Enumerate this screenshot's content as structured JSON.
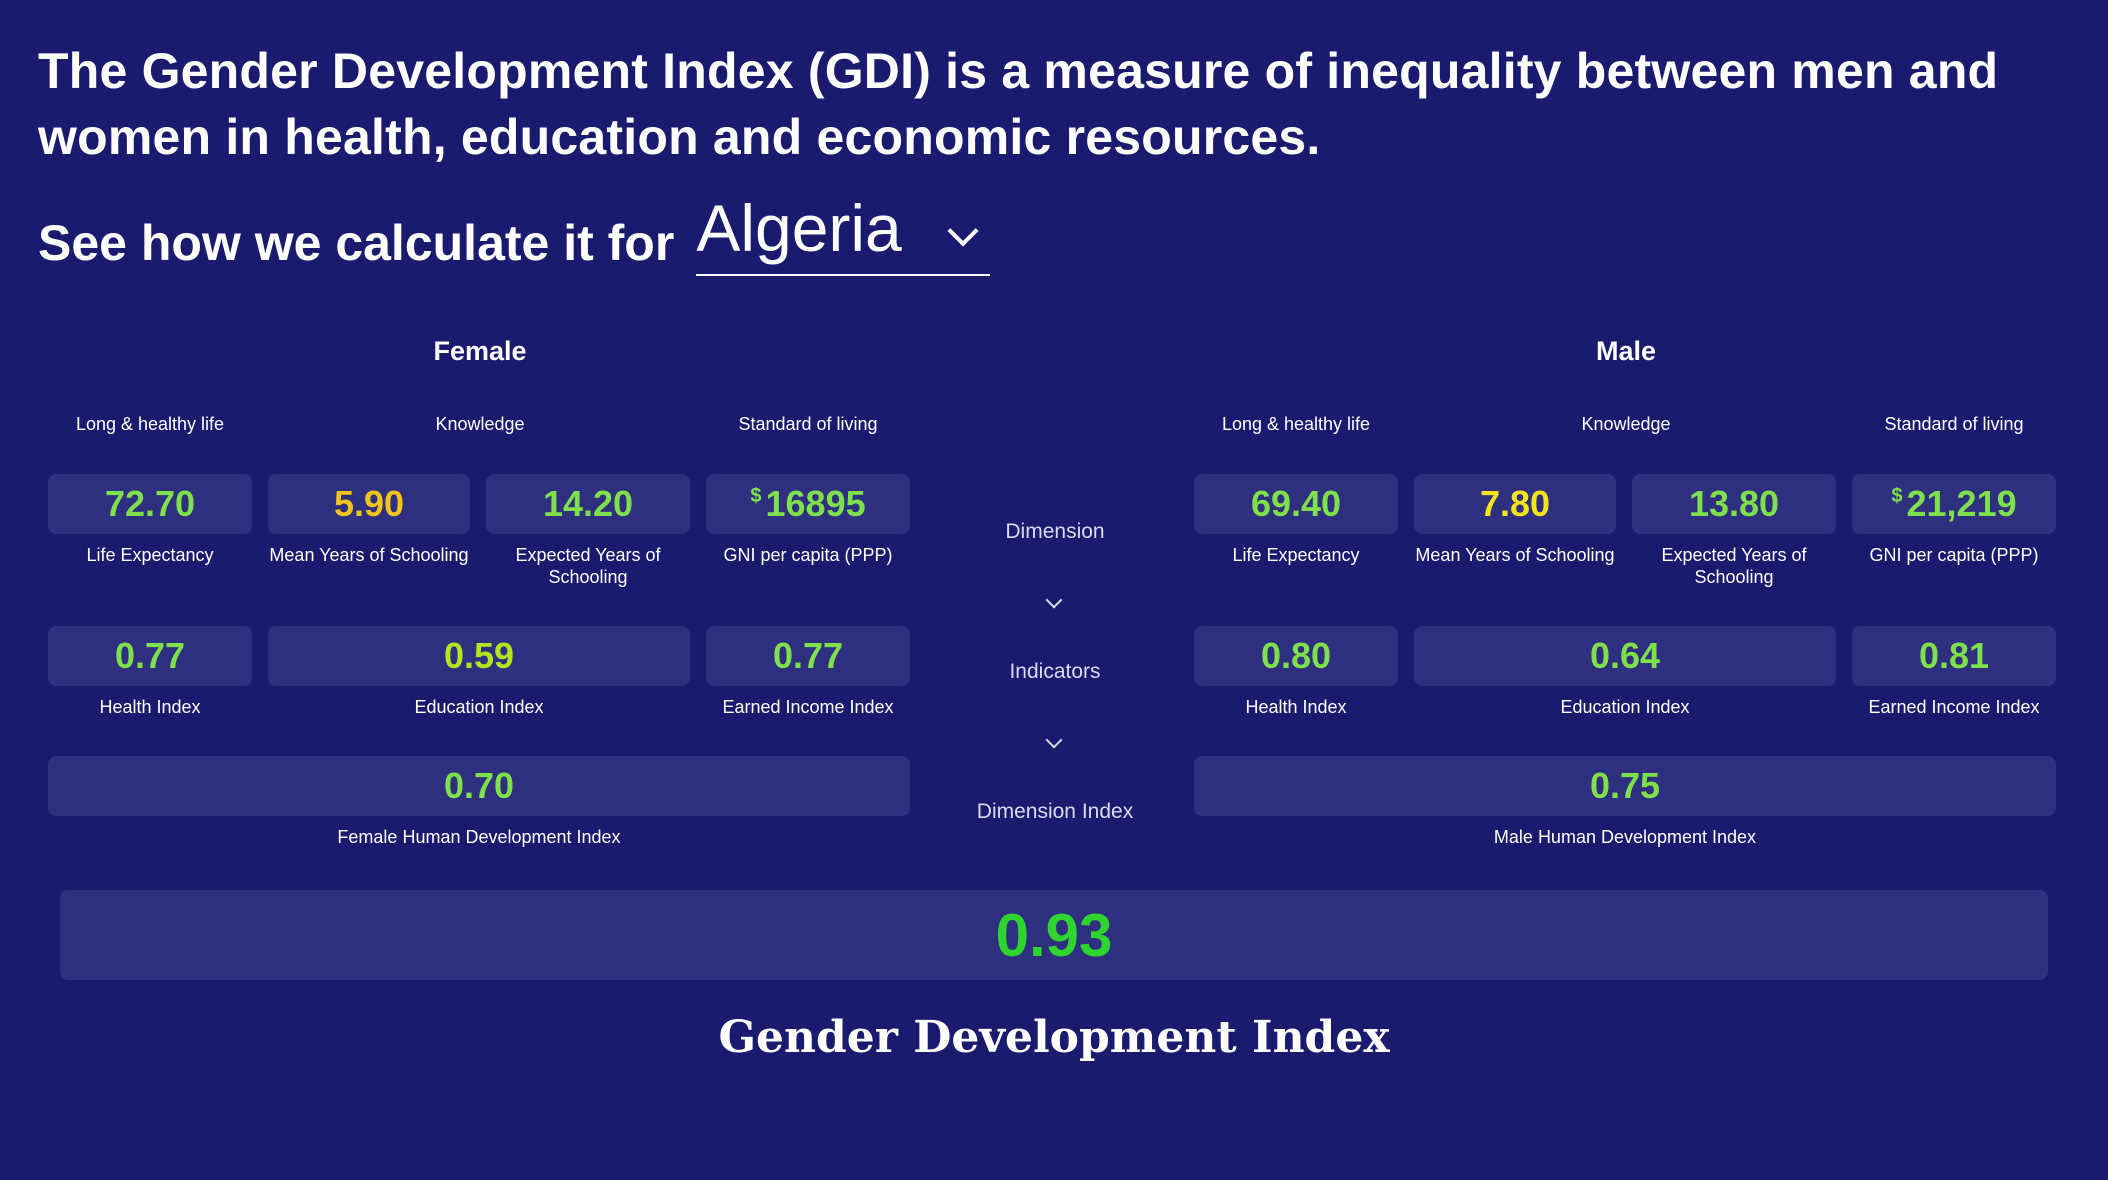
{
  "intro": {
    "line1": "The Gender Development Index (GDI) is a measure of inequality between men and",
    "line2": "women in health, education and economic resources.",
    "see_label": "See how we calculate it for",
    "country": "Algeria"
  },
  "flow": {
    "dimension": "Dimension",
    "indicators": "Indicators",
    "dimension_index": "Dimension Index"
  },
  "female": {
    "title": "Female",
    "dims": {
      "health": "Long & healthy life",
      "knowledge": "Knowledge",
      "living": "Standard of living"
    },
    "life_expectancy": {
      "value": "72.70",
      "label": "Life Expectancy"
    },
    "mean_schooling": {
      "value": "5.90",
      "label": "Mean Years of Schooling"
    },
    "expected_schooling": {
      "value": "14.20",
      "label": "Expected Years of Schooling"
    },
    "gni": {
      "currency": "$",
      "value": "16895",
      "label": "GNI per capita (PPP)"
    },
    "health_index": {
      "value": "0.77",
      "label": "Health Index"
    },
    "education_index": {
      "value": "0.59",
      "label": "Education Index"
    },
    "income_index": {
      "value": "0.77",
      "label": "Earned Income Index"
    },
    "hdi": {
      "value": "0.70",
      "label": "Female Human Development Index"
    }
  },
  "male": {
    "title": "Male",
    "dims": {
      "health": "Long & healthy life",
      "knowledge": "Knowledge",
      "living": "Standard of living"
    },
    "life_expectancy": {
      "value": "69.40",
      "label": "Life Expectancy"
    },
    "mean_schooling": {
      "value": "7.80",
      "label": "Mean Years of Schooling"
    },
    "expected_schooling": {
      "value": "13.80",
      "label": "Expected Years of Schooling"
    },
    "gni": {
      "currency": "$",
      "value": "21,219",
      "label": "GNI per capita (PPP)"
    },
    "health_index": {
      "value": "0.80",
      "label": "Health Index"
    },
    "education_index": {
      "value": "0.64",
      "label": "Education Index"
    },
    "income_index": {
      "value": "0.81",
      "label": "Earned Income Index"
    },
    "hdi": {
      "value": "0.75",
      "label": "Male Human Development Index"
    }
  },
  "gdi": {
    "value": "0.93",
    "label": "Gender Development Index"
  },
  "colors": {
    "background": "#1a1a6e",
    "tile": "#2f2f80",
    "value_green": "#7ee04a",
    "value_orange": "#f0c419",
    "value_yellow": "#f2e51a",
    "gdi_green": "#2ed52e"
  },
  "icons": {
    "dropdown": "chevron-down-icon",
    "flow": "chevron-down-icon"
  }
}
